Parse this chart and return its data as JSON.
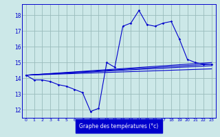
{
  "bg_color": "#cce8e8",
  "grid_color": "#99bbbb",
  "line_color": "#0000cc",
  "xlabel": "Graphe des températures (°c)",
  "ylim": [
    11.5,
    18.7
  ],
  "xlim": [
    -0.5,
    23.5
  ],
  "yticks": [
    12,
    13,
    14,
    15,
    16,
    17,
    18
  ],
  "xticks": [
    0,
    1,
    2,
    3,
    4,
    5,
    6,
    7,
    8,
    9,
    10,
    11,
    12,
    13,
    14,
    15,
    16,
    17,
    18,
    19,
    20,
    21,
    22,
    23
  ],
  "main_x": [
    0,
    1,
    2,
    3,
    4,
    5,
    6,
    7,
    8,
    9,
    10,
    11,
    12,
    13,
    14,
    15,
    16,
    17,
    18,
    19,
    20,
    21,
    22,
    23
  ],
  "main_y": [
    14.2,
    13.9,
    13.9,
    13.8,
    13.6,
    13.5,
    13.3,
    13.1,
    11.9,
    12.1,
    15.0,
    14.7,
    17.3,
    17.5,
    18.3,
    17.4,
    17.3,
    17.5,
    17.6,
    16.5,
    15.2,
    15.0,
    14.9,
    14.9
  ],
  "fan_lines": [
    {
      "x": [
        0,
        23
      ],
      "y": [
        14.2,
        15.0
      ]
    },
    {
      "x": [
        0,
        23
      ],
      "y": [
        14.2,
        14.9
      ]
    },
    {
      "x": [
        0,
        23
      ],
      "y": [
        14.2,
        14.8
      ]
    },
    {
      "x": [
        0,
        23
      ],
      "y": [
        14.2,
        14.6
      ]
    }
  ]
}
